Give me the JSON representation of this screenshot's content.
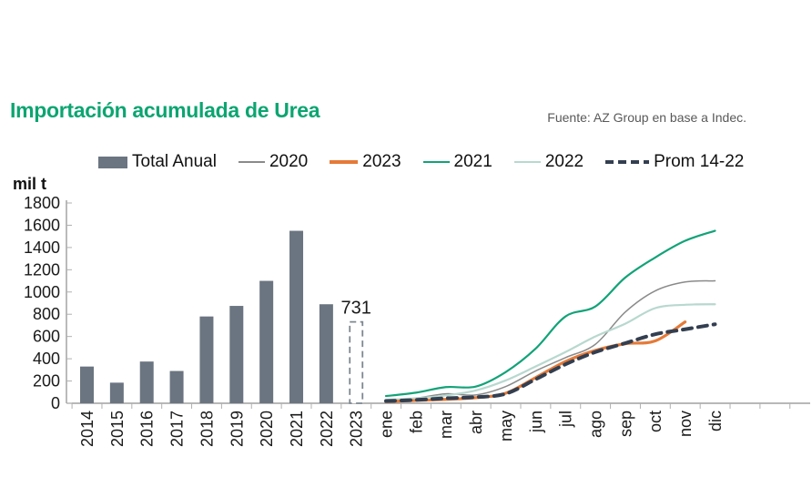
{
  "title": "Importación acumulada de Urea",
  "title_color": "#0ca572",
  "source": "Fuente: AZ Group en base a Indec.",
  "y_axis_label": "mil t",
  "legend": [
    {
      "label": "Total Anual",
      "swatch": "bar",
      "color": "#6b7581"
    },
    {
      "label": "2020",
      "swatch": "line-thin",
      "color": "#8a8a8a"
    },
    {
      "label": "2023",
      "swatch": "line-thick",
      "color": "#e57a38"
    },
    {
      "label": "2021",
      "swatch": "line",
      "color": "#12a377"
    },
    {
      "label": "2022",
      "swatch": "line",
      "color": "#b8d8cf"
    },
    {
      "label": "Prom 14-22",
      "swatch": "dashed",
      "color": "#333f50"
    }
  ],
  "chart_data": {
    "type": "bar",
    "subtype": "combo bar + cumulative monthly lines",
    "title": "Importación acumulada de Urea",
    "ylabel": "mil t",
    "ylim": [
      0,
      1800
    ],
    "yticks": [
      0,
      200,
      400,
      600,
      800,
      1000,
      1200,
      1400,
      1600,
      1800
    ],
    "grid": false,
    "bars": {
      "name": "Total Anual",
      "color": "#6b7581",
      "categories": [
        "2014",
        "2015",
        "2016",
        "2017",
        "2018",
        "2019",
        "2020",
        "2021",
        "2022",
        "2023"
      ],
      "values": [
        330,
        185,
        375,
        290,
        780,
        875,
        1100,
        1550,
        890,
        731
      ],
      "dashed_outline_category": "2023",
      "data_label": {
        "category": "2023",
        "text": "731"
      }
    },
    "lines": {
      "x": [
        "ene",
        "feb",
        "mar",
        "abr",
        "may",
        "jun",
        "jul",
        "ago",
        "sep",
        "oct",
        "nov",
        "dic"
      ],
      "series": [
        {
          "name": "2020",
          "color": "#8a8a8a",
          "style": "solid",
          "width": 1.5,
          "values": [
            25,
            45,
            85,
            75,
            150,
            290,
            410,
            530,
            820,
            1010,
            1090,
            1100
          ]
        },
        {
          "name": "2022",
          "color": "#b8d8cf",
          "style": "solid",
          "width": 2.2,
          "values": [
            30,
            45,
            70,
            115,
            205,
            330,
            460,
            600,
            715,
            855,
            885,
            890
          ]
        },
        {
          "name": "2021",
          "color": "#12a377",
          "style": "solid",
          "width": 2.2,
          "values": [
            65,
            95,
            145,
            150,
            280,
            490,
            780,
            870,
            1130,
            1310,
            1460,
            1550
          ]
        },
        {
          "name": "2023",
          "color": "#e57a38",
          "style": "solid",
          "width": 3.2,
          "values": [
            15,
            25,
            35,
            50,
            90,
            230,
            375,
            475,
            535,
            560,
            731
          ]
        },
        {
          "name": "Prom 14-22",
          "color": "#333f50",
          "style": "dashed",
          "width": 4,
          "values": [
            20,
            30,
            45,
            55,
            85,
            215,
            350,
            460,
            540,
            620,
            665,
            710
          ]
        }
      ],
      "legend_position": "top"
    }
  }
}
